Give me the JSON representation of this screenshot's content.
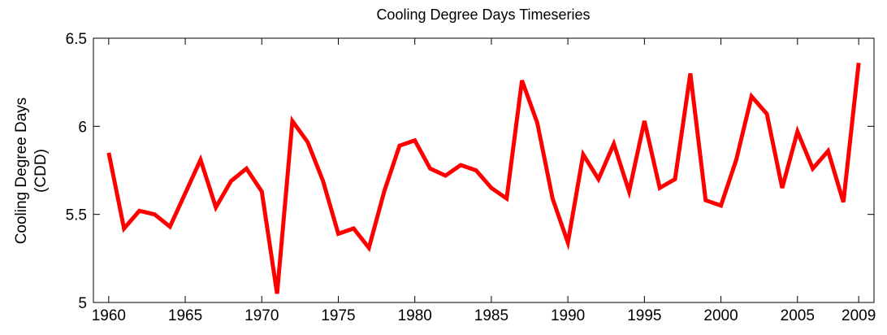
{
  "chart_data": {
    "type": "line",
    "title": "Cooling Degree Days Timeseries",
    "ylabel": [
      "Cooling Degree Days",
      "(CDD)"
    ],
    "x": [
      1960,
      1961,
      1962,
      1963,
      1964,
      1965,
      1966,
      1967,
      1968,
      1969,
      1970,
      1971,
      1972,
      1973,
      1974,
      1975,
      1976,
      1977,
      1978,
      1979,
      1980,
      1981,
      1982,
      1983,
      1984,
      1985,
      1986,
      1987,
      1988,
      1989,
      1990,
      1991,
      1992,
      1993,
      1994,
      1995,
      1996,
      1997,
      1998,
      1999,
      2000,
      2001,
      2002,
      2003,
      2004,
      2005,
      2006,
      2007,
      2008,
      2009
    ],
    "series": [
      {
        "color": "#ff0000",
        "values": [
          5.85,
          5.42,
          5.52,
          5.5,
          5.43,
          5.62,
          5.81,
          5.54,
          5.69,
          5.76,
          5.63,
          5.05,
          6.03,
          5.91,
          5.69,
          5.39,
          5.42,
          5.31,
          5.63,
          5.89,
          5.92,
          5.76,
          5.72,
          5.78,
          5.75,
          5.65,
          5.59,
          6.26,
          6.02,
          5.59,
          5.34,
          5.84,
          5.7,
          5.9,
          5.63,
          6.03,
          5.65,
          5.7,
          6.3,
          5.58,
          5.55,
          5.81,
          6.17,
          6.07,
          5.65,
          5.97,
          5.76,
          5.86,
          5.57,
          6.36
        ]
      }
    ],
    "xlim": [
      1959,
      2010
    ],
    "xticks": [
      1960,
      1965,
      1970,
      1975,
      1980,
      1985,
      1990,
      1995,
      2000,
      2005,
      2009
    ],
    "ylim": [
      5,
      6.5
    ],
    "yticks": [
      5,
      5.5,
      6,
      6.5
    ]
  }
}
